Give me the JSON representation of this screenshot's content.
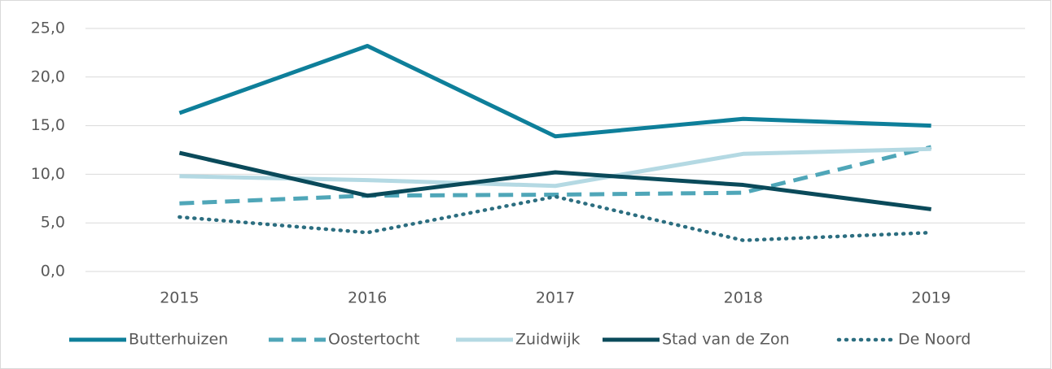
{
  "chart_data": {
    "type": "line",
    "categories": [
      "2015",
      "2016",
      "2017",
      "2018",
      "2019"
    ],
    "series": [
      {
        "name": "Butterhuizen",
        "color": "#0e7f9a",
        "dash": "solid",
        "values": [
          16.3,
          23.2,
          13.9,
          15.7,
          15.0
        ]
      },
      {
        "name": "Oostertocht",
        "color": "#4fa6b8",
        "dash": "dashed",
        "values": [
          7.0,
          7.8,
          7.9,
          8.1,
          12.8
        ]
      },
      {
        "name": "Zuidwijk",
        "color": "#b4d9e3",
        "dash": "solid",
        "values": [
          9.8,
          9.4,
          8.8,
          12.1,
          12.6
        ]
      },
      {
        "name": "Stad van de Zon",
        "color": "#0a4a5a",
        "dash": "solid",
        "values": [
          12.2,
          7.8,
          10.2,
          8.9,
          6.4
        ]
      },
      {
        "name": "De Noord",
        "color": "#2c6e80",
        "dash": "dotted",
        "values": [
          5.6,
          4.0,
          7.7,
          3.2,
          4.0
        ]
      }
    ],
    "ylim": [
      0,
      25
    ],
    "yticks": [
      {
        "value": 0,
        "label": "0,0"
      },
      {
        "value": 5,
        "label": "5,0"
      },
      {
        "value": 10,
        "label": "10,0"
      },
      {
        "value": 15,
        "label": "15,0"
      },
      {
        "value": 20,
        "label": "20,0"
      },
      {
        "value": 25,
        "label": "25,0"
      }
    ],
    "grid": true,
    "legend": "bottom"
  }
}
